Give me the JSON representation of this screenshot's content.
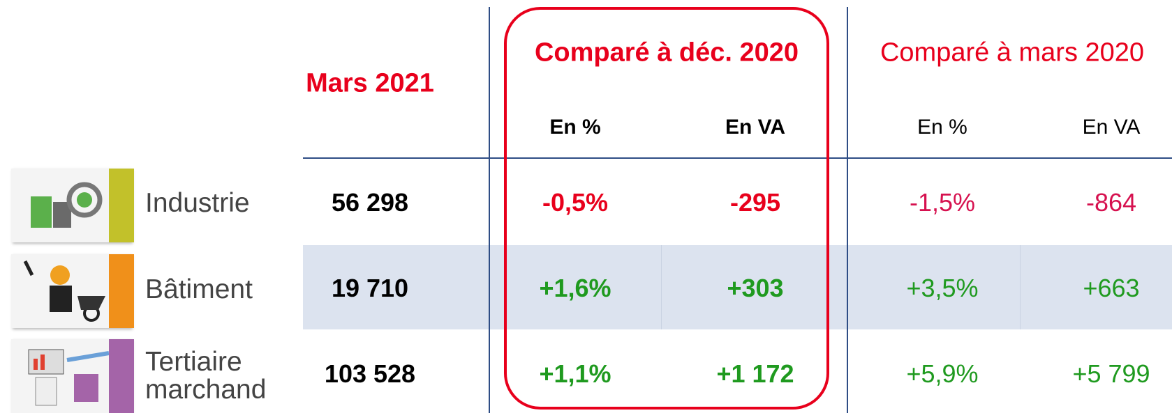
{
  "header": {
    "title": "Mars 2021",
    "groups": [
      "Comparé à déc. 2020",
      "Comparé à mars 2020"
    ],
    "subheaders": [
      "En %",
      "En VA",
      "En %",
      "En VA"
    ]
  },
  "rows": [
    {
      "label": "Industrie",
      "value": "56 298",
      "cells": [
        "-0,5%",
        "-295",
        "-1,5%",
        "-864"
      ]
    },
    {
      "label": "Bâtiment",
      "value": "19 710",
      "cells": [
        "+1,6%",
        "+303",
        "+3,5%",
        "+663"
      ]
    },
    {
      "label": "Tertiaire marchand",
      "value": "103 528",
      "cells": [
        "+1,1%",
        "+1 172",
        "+5,9%",
        "+5 799"
      ]
    }
  ]
}
